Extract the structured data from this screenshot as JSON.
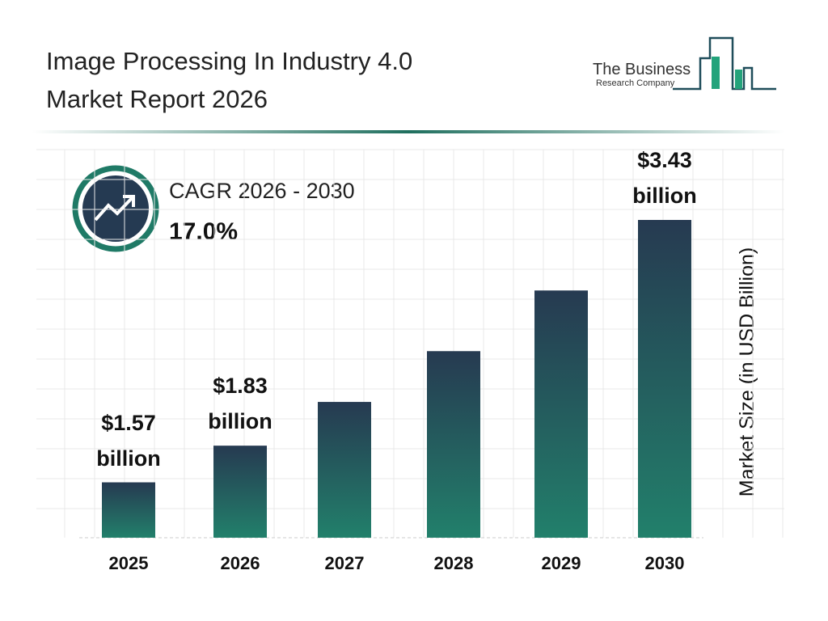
{
  "header": {
    "title_lines": [
      "Image Processing In Industry 4.0",
      "Market Report 2026"
    ],
    "logo_lines": [
      "The Business",
      "Research Company"
    ]
  },
  "cagr": {
    "label": "CAGR 2026 - 2030",
    "value": "17.0%"
  },
  "chart_data": {
    "type": "bar",
    "categories": [
      "2025",
      "2026",
      "2027",
      "2028",
      "2029",
      "2030"
    ],
    "values": [
      1.57,
      1.83,
      2.14,
      2.5,
      2.93,
      3.43
    ],
    "value_labels": [
      "$1.57 billion",
      "$1.83 billion",
      null,
      null,
      null,
      "$3.43 billion"
    ],
    "gradient": [
      "#263a51",
      "#22806b"
    ],
    "y_axis_label": "Market Size (in USD Billion)",
    "grid": true
  }
}
